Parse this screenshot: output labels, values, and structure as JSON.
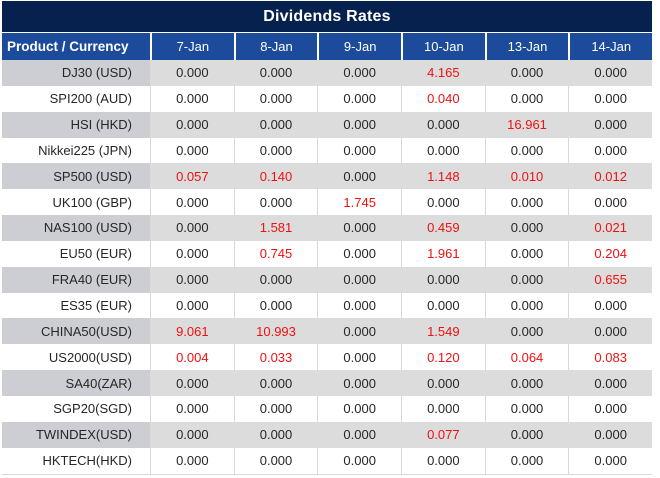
{
  "title": "Dividends Rates",
  "colors": {
    "title_bg": "#06214d",
    "header_bg": "#1c4b9c",
    "header_text": "#ffffff",
    "row_gray_product": "#ccced3",
    "row_gray_data": "#dcdcdc",
    "row_white": "#ffffff",
    "grid_border": "#d9d9d9",
    "value_text": "#262626",
    "nonzero_value_text": "#ee1111"
  },
  "chart_data": {
    "type": "table",
    "title": "Dividends Rates",
    "columns": [
      "Product / Currency",
      "7-Jan",
      "8-Jan",
      "9-Jan",
      "10-Jan",
      "13-Jan",
      "14-Jan"
    ],
    "highlight_rule": "non-zero dividend values rendered in red",
    "highlight_color": "#ee1111",
    "rows": [
      {
        "product": "DJ30 (USD)",
        "values": [
          "0.000",
          "0.000",
          "0.000",
          "4.165",
          "0.000",
          "0.000"
        ]
      },
      {
        "product": "SPI200 (AUD)",
        "values": [
          "0.000",
          "0.000",
          "0.000",
          "0.040",
          "0.000",
          "0.000"
        ]
      },
      {
        "product": "HSI (HKD)",
        "values": [
          "0.000",
          "0.000",
          "0.000",
          "0.000",
          "16.961",
          "0.000"
        ]
      },
      {
        "product": "Nikkei225 (JPN)",
        "values": [
          "0.000",
          "0.000",
          "0.000",
          "0.000",
          "0.000",
          "0.000"
        ]
      },
      {
        "product": "SP500 (USD)",
        "values": [
          "0.057",
          "0.140",
          "0.000",
          "1.148",
          "0.010",
          "0.012"
        ]
      },
      {
        "product": "UK100 (GBP)",
        "values": [
          "0.000",
          "0.000",
          "1.745",
          "0.000",
          "0.000",
          "0.000"
        ]
      },
      {
        "product": "NAS100 (USD)",
        "values": [
          "0.000",
          "1.581",
          "0.000",
          "0.459",
          "0.000",
          "0.021"
        ]
      },
      {
        "product": "EU50 (EUR)",
        "values": [
          "0.000",
          "0.745",
          "0.000",
          "1.961",
          "0.000",
          "0.204"
        ]
      },
      {
        "product": "FRA40 (EUR)",
        "values": [
          "0.000",
          "0.000",
          "0.000",
          "0.000",
          "0.000",
          "0.655"
        ]
      },
      {
        "product": "ES35 (EUR)",
        "values": [
          "0.000",
          "0.000",
          "0.000",
          "0.000",
          "0.000",
          "0.000"
        ]
      },
      {
        "product": "CHINA50(USD)",
        "values": [
          "9.061",
          "10.993",
          "0.000",
          "1.549",
          "0.000",
          "0.000"
        ]
      },
      {
        "product": "US2000(USD)",
        "values": [
          "0.004",
          "0.033",
          "0.000",
          "0.120",
          "0.064",
          "0.083"
        ]
      },
      {
        "product": "SA40(ZAR)",
        "values": [
          "0.000",
          "0.000",
          "0.000",
          "0.000",
          "0.000",
          "0.000"
        ]
      },
      {
        "product": "SGP20(SGD)",
        "values": [
          "0.000",
          "0.000",
          "0.000",
          "0.000",
          "0.000",
          "0.000"
        ]
      },
      {
        "product": "TWINDEX(USD)",
        "values": [
          "0.000",
          "0.000",
          "0.000",
          "0.077",
          "0.000",
          "0.000"
        ]
      },
      {
        "product": "HKTECH(HKD)",
        "values": [
          "0.000",
          "0.000",
          "0.000",
          "0.000",
          "0.000",
          "0.000"
        ]
      }
    ]
  }
}
